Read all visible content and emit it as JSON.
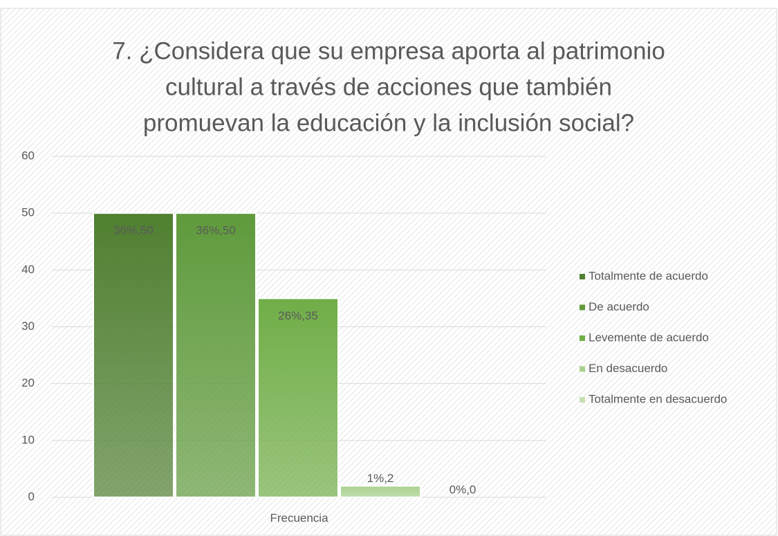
{
  "chart_data": {
    "type": "bar",
    "title": [
      "7. ¿Considera que su empresa aporta al patrimonio",
      "cultural a través de acciones que también",
      "promuevan la educación y la inclusión social?"
    ],
    "categories": [
      "Frecuencia"
    ],
    "series": [
      {
        "name": "Totalmente de acuerdo",
        "color": "#4f7f30",
        "values": [
          50
        ],
        "value_labels": [
          "36%,50"
        ]
      },
      {
        "name": "De acuerdo",
        "color": "#5f9a3c",
        "values": [
          50
        ],
        "value_labels": [
          "36%,50"
        ]
      },
      {
        "name": "Levemente de acuerdo",
        "color": "#70ad47",
        "values": [
          35
        ],
        "value_labels": [
          "26%,35"
        ]
      },
      {
        "name": "En desacuerdo",
        "color": "#a9d18e",
        "values": [
          2
        ],
        "value_labels": [
          "1%,2"
        ]
      },
      {
        "name": "Totalmente en desacuerdo",
        "color": "#c5e0b4",
        "values": [
          0
        ],
        "value_labels": [
          "0%,0"
        ]
      }
    ],
    "ylim": [
      0,
      60
    ],
    "yticks": [
      0,
      10,
      20,
      30,
      40,
      50,
      60
    ],
    "grid": true,
    "legend": "right"
  }
}
